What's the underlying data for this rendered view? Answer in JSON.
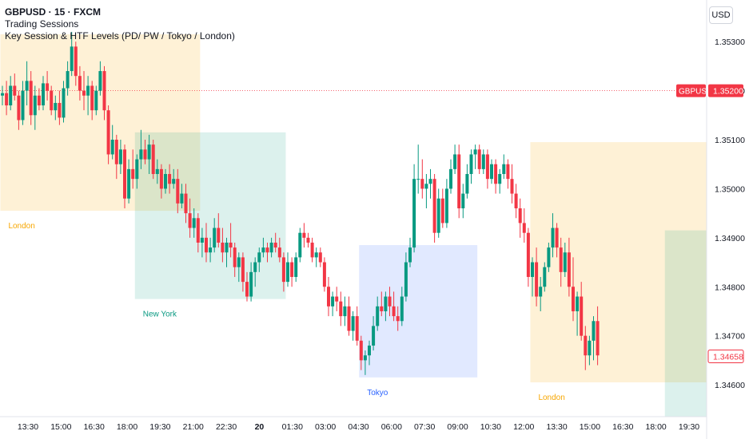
{
  "header": {
    "symbol_line": "GBPUSD · 15 · FXCM",
    "indicator_1": "Trading Sessions",
    "indicator_2": "Key Session & HTF Levels (PD/ PW / Tokyo / London)"
  },
  "currency_button": "USD",
  "chart_data": {
    "type": "candlestick",
    "symbol": "GBPUSD",
    "yaxis": {
      "ticks": [
        "1.35300",
        "1.35200",
        "1.35100",
        "1.35000",
        "1.34900",
        "1.34800",
        "1.34700",
        "1.34600"
      ],
      "tick_values": [
        1.353,
        1.352,
        1.351,
        1.35,
        1.349,
        1.348,
        1.347,
        1.346
      ],
      "range": [
        1.34535,
        1.35385
      ]
    },
    "xaxis": {
      "ticks": [
        "13:30",
        "15:00",
        "16:30",
        "18:00",
        "19:30",
        "21:00",
        "22:30",
        "20",
        "01:30",
        "03:00",
        "04:30",
        "06:00",
        "07:30",
        "09:00",
        "10:30",
        "12:00",
        "13:30",
        "15:00",
        "16:30",
        "18:00",
        "19:30"
      ],
      "bold_ticks": [
        "20"
      ]
    },
    "price_labels": [
      {
        "label": "GBPUSD",
        "value": "1.35200",
        "price": 1.352,
        "dotted_line": true,
        "color": "#f23645"
      },
      {
        "label": "",
        "value": "1.34658",
        "price": 1.34658,
        "dotted_line": false,
        "color": "#f23645"
      }
    ],
    "colors": {
      "up": "#089981",
      "down": "#f23645",
      "london": "#f7a600",
      "newyork": "#089981",
      "tokyo": "#2962ff"
    },
    "sessions": [
      {
        "name": "London",
        "type": "london",
        "from_bar": 0,
        "to_bar": 48,
        "high": 1.35315,
        "low": 1.34955,
        "label_pos": "below"
      },
      {
        "name": "New York",
        "type": "newyork",
        "from_bar": 33,
        "to_bar": 69,
        "high": 1.35115,
        "low": 1.34775,
        "label_pos": "below"
      },
      {
        "name": "Tokyo",
        "type": "tokyo",
        "from_bar": 88,
        "to_bar": 116,
        "high": 1.34885,
        "low": 1.34615,
        "label_pos": "below"
      },
      {
        "name": "London",
        "type": "london",
        "from_bar": 130,
        "to_bar": 177,
        "high": 1.35095,
        "low": 1.34605,
        "label_pos": "below"
      },
      {
        "name": "",
        "type": "newyork",
        "from_bar": 163,
        "to_bar": 177,
        "high": 1.34915,
        "low": 1.34535,
        "label_pos": "none"
      }
    ],
    "candles": [
      [
        1.3519,
        1.3521,
        1.3517,
        1.35195
      ],
      [
        1.35195,
        1.3522,
        1.3515,
        1.3517
      ],
      [
        1.3517,
        1.3523,
        1.3516,
        1.3521
      ],
      [
        1.3521,
        1.35235,
        1.3518,
        1.3519
      ],
      [
        1.3519,
        1.352,
        1.3512,
        1.3514
      ],
      [
        1.3514,
        1.3522,
        1.3513,
        1.352
      ],
      [
        1.352,
        1.3526,
        1.3517,
        1.3522
      ],
      [
        1.3522,
        1.3524,
        1.3513,
        1.3515
      ],
      [
        1.3515,
        1.3521,
        1.3512,
        1.3519
      ],
      [
        1.3519,
        1.35205,
        1.3516,
        1.3517
      ],
      [
        1.3517,
        1.3523,
        1.3516,
        1.35215
      ],
      [
        1.35215,
        1.3524,
        1.3518,
        1.352
      ],
      [
        1.352,
        1.3521,
        1.3515,
        1.3516
      ],
      [
        1.3516,
        1.3519,
        1.3514,
        1.35175
      ],
      [
        1.35175,
        1.352,
        1.3513,
        1.35145
      ],
      [
        1.35145,
        1.3522,
        1.35135,
        1.35205
      ],
      [
        1.35205,
        1.3526,
        1.3519,
        1.3524
      ],
      [
        1.3524,
        1.3532,
        1.3523,
        1.3529
      ],
      [
        1.3529,
        1.353,
        1.3521,
        1.3523
      ],
      [
        1.3523,
        1.3525,
        1.3518,
        1.352
      ],
      [
        1.352,
        1.3524,
        1.3516,
        1.3519
      ],
      [
        1.3519,
        1.3523,
        1.3515,
        1.3521
      ],
      [
        1.3521,
        1.3522,
        1.3514,
        1.3516
      ],
      [
        1.3516,
        1.3521,
        1.3515,
        1.352
      ],
      [
        1.352,
        1.3526,
        1.3519,
        1.3524
      ],
      [
        1.3524,
        1.3525,
        1.3514,
        1.3516
      ],
      [
        1.3516,
        1.3517,
        1.3505,
        1.3507
      ],
      [
        1.3507,
        1.3513,
        1.3506,
        1.351
      ],
      [
        1.351,
        1.3511,
        1.3502,
        1.3505
      ],
      [
        1.3505,
        1.351,
        1.3503,
        1.3508
      ],
      [
        1.3508,
        1.3509,
        1.3496,
        1.3498
      ],
      [
        1.3498,
        1.3506,
        1.3497,
        1.3504
      ],
      [
        1.3504,
        1.3508,
        1.35,
        1.3502
      ],
      [
        1.3502,
        1.3507,
        1.35,
        1.3506
      ],
      [
        1.3506,
        1.3512,
        1.3504,
        1.3508
      ],
      [
        1.3508,
        1.351,
        1.3505,
        1.3506
      ],
      [
        1.3506,
        1.3511,
        1.3503,
        1.3509
      ],
      [
        1.3509,
        1.351,
        1.3502,
        1.3503
      ],
      [
        1.3503,
        1.3506,
        1.3501,
        1.3504
      ],
      [
        1.3504,
        1.3505,
        1.3498,
        1.35
      ],
      [
        1.35,
        1.3504,
        1.3499,
        1.3503
      ],
      [
        1.3503,
        1.3505,
        1.3499,
        1.3501
      ],
      [
        1.3501,
        1.3504,
        1.35,
        1.3502
      ],
      [
        1.3502,
        1.3504,
        1.3495,
        1.3497
      ],
      [
        1.3497,
        1.3501,
        1.3496,
        1.3499
      ],
      [
        1.3499,
        1.3501,
        1.3493,
        1.3495
      ],
      [
        1.3495,
        1.3498,
        1.349,
        1.3492
      ],
      [
        1.3492,
        1.3496,
        1.349,
        1.3494
      ],
      [
        1.3494,
        1.3495,
        1.3487,
        1.3489
      ],
      [
        1.3489,
        1.3492,
        1.3486,
        1.349
      ],
      [
        1.349,
        1.3493,
        1.3485,
        1.3487
      ],
      [
        1.3487,
        1.349,
        1.3485,
        1.3488
      ],
      [
        1.3488,
        1.3494,
        1.3487,
        1.3492
      ],
      [
        1.3492,
        1.3495,
        1.3488,
        1.3489
      ],
      [
        1.3489,
        1.3492,
        1.3485,
        1.3487
      ],
      [
        1.3487,
        1.349,
        1.3484,
        1.3489
      ],
      [
        1.3489,
        1.3493,
        1.3486,
        1.3488
      ],
      [
        1.3488,
        1.3489,
        1.3482,
        1.3484
      ],
      [
        1.3484,
        1.3487,
        1.3481,
        1.3486
      ],
      [
        1.3486,
        1.3487,
        1.3479,
        1.3481
      ],
      [
        1.3481,
        1.3483,
        1.3477,
        1.3478
      ],
      [
        1.3478,
        1.3485,
        1.3477,
        1.3483
      ],
      [
        1.3483,
        1.3486,
        1.348,
        1.3485
      ],
      [
        1.3485,
        1.3488,
        1.3483,
        1.3487
      ],
      [
        1.3487,
        1.349,
        1.3486,
        1.3488
      ],
      [
        1.3488,
        1.3489,
        1.3485,
        1.3487
      ],
      [
        1.3487,
        1.349,
        1.3486,
        1.3489
      ],
      [
        1.3489,
        1.3491,
        1.3487,
        1.3488
      ],
      [
        1.3488,
        1.349,
        1.3485,
        1.3486
      ],
      [
        1.3486,
        1.3487,
        1.3479,
        1.3481
      ],
      [
        1.3481,
        1.3487,
        1.348,
        1.3485
      ],
      [
        1.3485,
        1.3486,
        1.348,
        1.3482
      ],
      [
        1.3482,
        1.3487,
        1.3481,
        1.3486
      ],
      [
        1.3486,
        1.3492,
        1.3485,
        1.3491
      ],
      [
        1.3491,
        1.3493,
        1.3488,
        1.349
      ],
      [
        1.349,
        1.3491,
        1.3488,
        1.3489
      ],
      [
        1.3489,
        1.349,
        1.3485,
        1.3486
      ],
      [
        1.3486,
        1.3488,
        1.3484,
        1.3487
      ],
      [
        1.3487,
        1.3488,
        1.3484,
        1.3485
      ],
      [
        1.3485,
        1.3486,
        1.3479,
        1.348
      ],
      [
        1.348,
        1.3482,
        1.3474,
        1.3476
      ],
      [
        1.3476,
        1.3479,
        1.3474,
        1.3478
      ],
      [
        1.3478,
        1.348,
        1.3475,
        1.3477
      ],
      [
        1.3477,
        1.3479,
        1.3472,
        1.3474
      ],
      [
        1.3474,
        1.3478,
        1.3472,
        1.3476
      ],
      [
        1.3476,
        1.3478,
        1.347,
        1.3471
      ],
      [
        1.3471,
        1.3475,
        1.3469,
        1.3474
      ],
      [
        1.3474,
        1.3476,
        1.3468,
        1.3469
      ],
      [
        1.3469,
        1.347,
        1.3463,
        1.3465
      ],
      [
        1.3465,
        1.3467,
        1.3462,
        1.3466
      ],
      [
        1.3466,
        1.3469,
        1.3464,
        1.3468
      ],
      [
        1.3468,
        1.3474,
        1.3467,
        1.3472
      ],
      [
        1.3472,
        1.3478,
        1.3471,
        1.3476
      ],
      [
        1.3476,
        1.3479,
        1.3474,
        1.3475
      ],
      [
        1.3475,
        1.3479,
        1.3473,
        1.3478
      ],
      [
        1.3478,
        1.348,
        1.3474,
        1.3476
      ],
      [
        1.3476,
        1.3479,
        1.3473,
        1.3474
      ],
      [
        1.3474,
        1.3476,
        1.3471,
        1.3473
      ],
      [
        1.3473,
        1.348,
        1.3472,
        1.3478
      ],
      [
        1.3478,
        1.3487,
        1.3477,
        1.3485
      ],
      [
        1.3485,
        1.349,
        1.3484,
        1.3488
      ],
      [
        1.3488,
        1.3505,
        1.3487,
        1.3502
      ],
      [
        1.3502,
        1.3509,
        1.3499,
        1.3502
      ],
      [
        1.3502,
        1.3506,
        1.3498,
        1.35
      ],
      [
        1.35,
        1.3503,
        1.3496,
        1.3501
      ],
      [
        1.3501,
        1.3504,
        1.3498,
        1.3502
      ],
      [
        1.3502,
        1.3503,
        1.3489,
        1.3491
      ],
      [
        1.3491,
        1.35,
        1.349,
        1.3498
      ],
      [
        1.3498,
        1.35,
        1.3492,
        1.3493
      ],
      [
        1.3493,
        1.3502,
        1.3492,
        1.35
      ],
      [
        1.35,
        1.3506,
        1.3499,
        1.3504
      ],
      [
        1.3504,
        1.3509,
        1.3503,
        1.3507
      ],
      [
        1.3507,
        1.3509,
        1.3494,
        1.3496
      ],
      [
        1.3496,
        1.3501,
        1.3494,
        1.3499
      ],
      [
        1.3499,
        1.3505,
        1.3498,
        1.3503
      ],
      [
        1.3503,
        1.3508,
        1.3501,
        1.3507
      ],
      [
        1.3507,
        1.3509,
        1.3504,
        1.3508
      ],
      [
        1.3508,
        1.3509,
        1.3503,
        1.3504
      ],
      [
        1.3504,
        1.3508,
        1.3503,
        1.3507
      ],
      [
        1.3507,
        1.3508,
        1.35,
        1.3502
      ],
      [
        1.3502,
        1.3506,
        1.3501,
        1.3505
      ],
      [
        1.3505,
        1.3506,
        1.3499,
        1.3501
      ],
      [
        1.3501,
        1.3504,
        1.3499,
        1.3503
      ],
      [
        1.3503,
        1.3507,
        1.3502,
        1.3505
      ],
      [
        1.3505,
        1.3506,
        1.35,
        1.3502
      ],
      [
        1.3502,
        1.3505,
        1.3497,
        1.3499
      ],
      [
        1.3499,
        1.3501,
        1.3494,
        1.3496
      ],
      [
        1.3496,
        1.3498,
        1.349,
        1.3493
      ],
      [
        1.3493,
        1.3496,
        1.3489,
        1.3491
      ],
      [
        1.3491,
        1.3492,
        1.348,
        1.3482
      ],
      [
        1.3482,
        1.3486,
        1.3478,
        1.3485
      ],
      [
        1.3485,
        1.3488,
        1.3476,
        1.3478
      ],
      [
        1.3478,
        1.3482,
        1.3475,
        1.348
      ],
      [
        1.348,
        1.3485,
        1.3479,
        1.3484
      ],
      [
        1.3484,
        1.3489,
        1.3483,
        1.3488
      ],
      [
        1.3488,
        1.3495,
        1.3486,
        1.3492
      ],
      [
        1.3492,
        1.3493,
        1.3486,
        1.3488
      ],
      [
        1.3488,
        1.349,
        1.348,
        1.3483
      ],
      [
        1.3483,
        1.3489,
        1.3482,
        1.3487
      ],
      [
        1.3487,
        1.349,
        1.3478,
        1.348
      ],
      [
        1.348,
        1.3486,
        1.3473,
        1.3475
      ],
      [
        1.3475,
        1.3479,
        1.347,
        1.3478
      ],
      [
        1.3478,
        1.3481,
        1.3469,
        1.347
      ],
      [
        1.347,
        1.3472,
        1.3463,
        1.3466
      ],
      [
        1.3466,
        1.347,
        1.3464,
        1.3469
      ],
      [
        1.3469,
        1.3474,
        1.3465,
        1.3473
      ],
      [
        1.3473,
        1.3476,
        1.3464,
        1.3466
      ]
    ]
  }
}
